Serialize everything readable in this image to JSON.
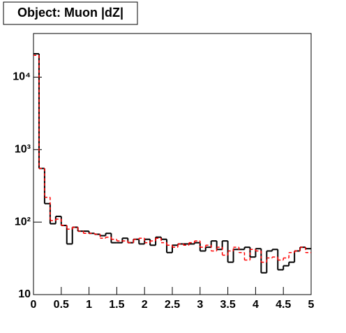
{
  "chart_data": {
    "type": "step-histogram",
    "title": "Object: Muon |dZ|",
    "bins": [
      0,
      0.1,
      0.2,
      0.3,
      0.4,
      0.5,
      0.6,
      0.7,
      0.8,
      0.9,
      1,
      1.1,
      1.2,
      1.3,
      1.4,
      1.5,
      1.6,
      1.7,
      1.8,
      1.9,
      2,
      2.1,
      2.2,
      2.3,
      2.4,
      2.5,
      2.6,
      2.7,
      2.8,
      2.9,
      3,
      3.1,
      3.2,
      3.3,
      3.4,
      3.5,
      3.6,
      3.7,
      3.8,
      3.9,
      4,
      4.1,
      4.2,
      4.3,
      4.4,
      4.5,
      4.6,
      4.7,
      4.8,
      4.9,
      5
    ],
    "series": [
      {
        "color": "#000000",
        "values": [
          21000,
          550,
          180,
          95,
          120,
          90,
          50,
          85,
          75,
          75,
          70,
          68,
          65,
          70,
          52,
          52,
          60,
          52,
          58,
          50,
          58,
          48,
          62,
          58,
          38,
          48,
          50,
          50,
          50,
          52,
          40,
          45,
          55,
          42,
          55,
          28,
          42,
          42,
          45,
          33,
          43,
          20,
          40,
          42,
          22,
          25,
          28,
          40,
          45,
          43
        ]
      },
      {
        "color": "#ff0000",
        "values": [
          20000,
          550,
          220,
          105,
          110,
          90,
          80,
          85,
          75,
          70,
          70,
          68,
          60,
          62,
          58,
          55,
          55,
          52,
          58,
          60,
          52,
          55,
          60,
          52,
          48,
          45,
          50,
          48,
          52,
          55,
          45,
          48,
          40,
          45,
          35,
          40,
          45,
          38,
          30,
          42,
          40,
          28,
          32,
          33,
          30,
          32,
          38,
          40,
          45,
          38
        ]
      }
    ],
    "xlim": [
      0,
      5
    ],
    "xticks": [
      0,
      0.5,
      1,
      1.5,
      2,
      2.5,
      3,
      3.5,
      4,
      4.5,
      5
    ],
    "ylim": [
      10,
      40000
    ],
    "log_y": true,
    "yticks": [
      10,
      {
        "value": 100,
        "label": "10²"
      },
      {
        "value": 1000,
        "label": "10³"
      },
      {
        "value": 10000,
        "label": "10⁴"
      }
    ]
  }
}
